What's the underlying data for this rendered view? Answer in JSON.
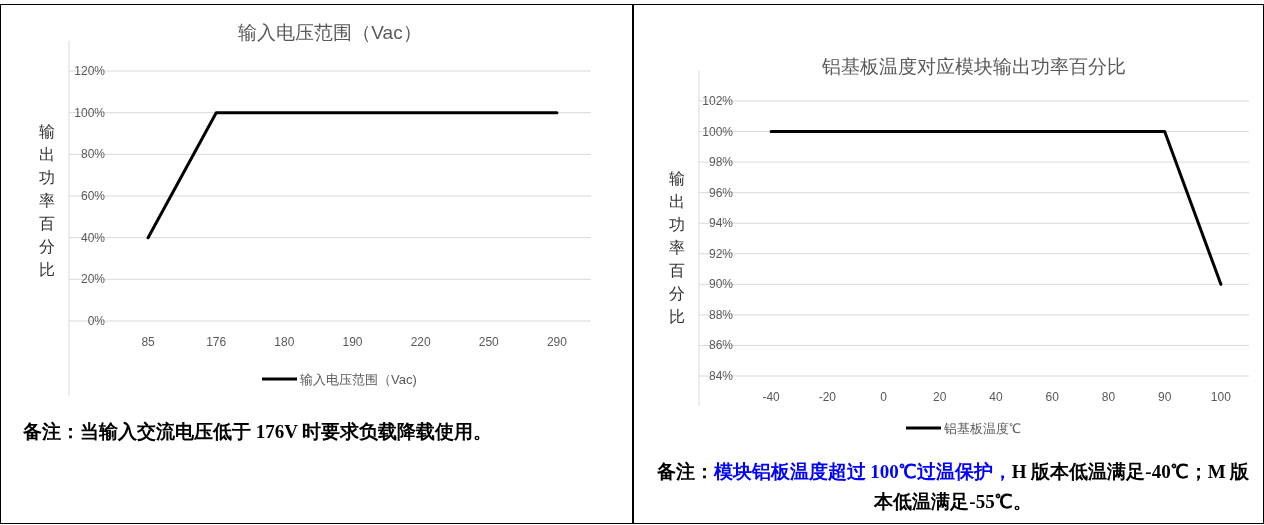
{
  "chart_data": [
    {
      "type": "line",
      "title": "输入电压范围（Vac）",
      "ylabel": "输出功率百分比",
      "categories": [
        "85",
        "176",
        "180",
        "190",
        "220",
        "250",
        "290"
      ],
      "series": [
        {
          "name": "输入电压范围（Vac)",
          "color": "#000000",
          "values": [
            40,
            100,
            100,
            100,
            100,
            100,
            100
          ]
        }
      ],
      "ylim": [
        0,
        120
      ],
      "yticks": [
        {
          "value": 0,
          "label": "0%"
        },
        {
          "value": 20,
          "label": "20%"
        },
        {
          "value": 40,
          "label": "40%"
        },
        {
          "value": 60,
          "label": "60%"
        },
        {
          "value": 80,
          "label": "80%"
        },
        {
          "value": 100,
          "label": "100%"
        },
        {
          "value": 120,
          "label": "120%"
        }
      ],
      "grid": "y",
      "legend": "bottom",
      "annotations": [
        "备注：当输入交流电压低于 176V 时要求负载降载使用。"
      ]
    },
    {
      "type": "line",
      "title": "铝基板温度对应模块输出功率百分比",
      "ylabel": "输出功率百分比",
      "categories": [
        "-40",
        "-20",
        "0",
        "20",
        "40",
        "60",
        "80",
        "90",
        "100"
      ],
      "series": [
        {
          "name": "铝基板温度℃",
          "color": "#000000",
          "values": [
            100,
            100,
            100,
            100,
            100,
            100,
            100,
            100,
            90
          ]
        }
      ],
      "ylim": [
        84,
        102
      ],
      "yticks": [
        {
          "value": 84,
          "label": "84%"
        },
        {
          "value": 86,
          "label": "86%"
        },
        {
          "value": 88,
          "label": "88%"
        },
        {
          "value": 90,
          "label": "90%"
        },
        {
          "value": 92,
          "label": "92%"
        },
        {
          "value": 94,
          "label": "94%"
        },
        {
          "value": 96,
          "label": "96%"
        },
        {
          "value": 98,
          "label": "98%"
        },
        {
          "value": 100,
          "label": "100%"
        },
        {
          "value": 102,
          "label": "102%"
        }
      ],
      "grid": "y",
      "legend": "bottom",
      "annotations": [
        "备注：",
        "模块铝板温度超过 100℃过温保护，",
        "H 版本低温满足-40℃；M 版本低温满足-55℃。"
      ]
    }
  ]
}
